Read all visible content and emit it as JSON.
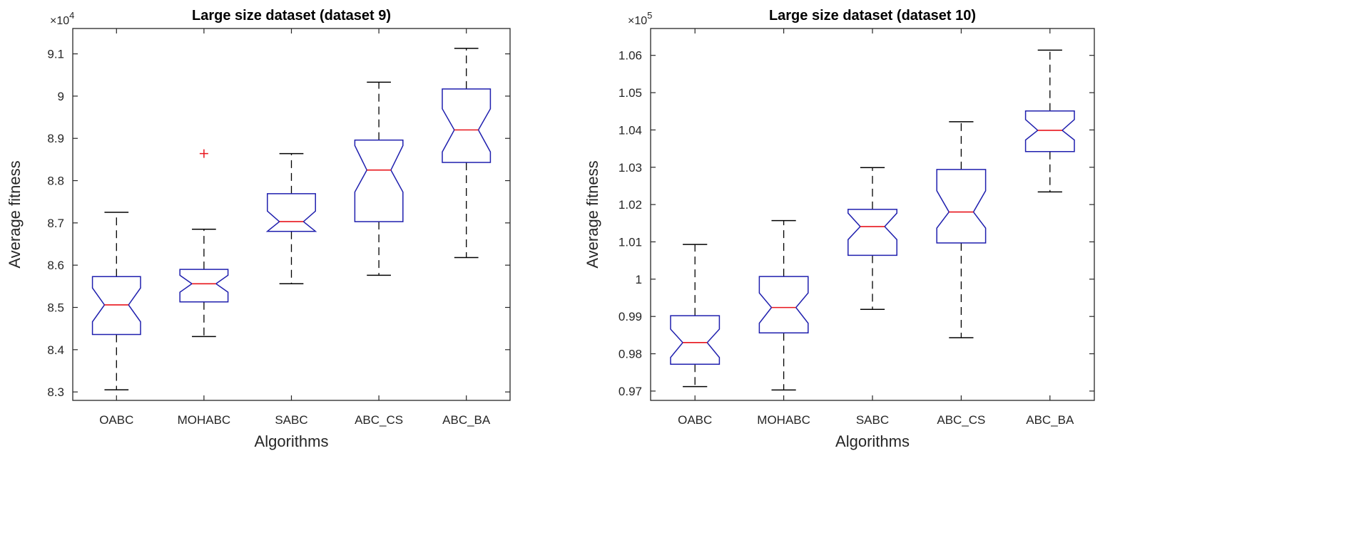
{
  "chart_data": [
    {
      "type": "box",
      "title": "Large size dataset (dataset 9)",
      "xlabel": "Algorithms",
      "ylabel": "Average fitness",
      "exponent_base": "×10",
      "exponent_power": "4",
      "ylim": [
        8.28,
        9.16
      ],
      "yticks": [
        "8.3",
        "8.4",
        "8.5",
        "8.6",
        "8.7",
        "8.8",
        "8.9",
        "9",
        "9.1"
      ],
      "ytick_values": [
        8.3,
        8.4,
        8.5,
        8.6,
        8.7,
        8.8,
        8.9,
        9.0,
        9.1
      ],
      "categories": [
        "OABC",
        "MOHABC",
        "SABC",
        "ABC_CS",
        "ABC_BA"
      ],
      "boxes": [
        {
          "name": "OABC",
          "min": 8.305,
          "q1": 8.436,
          "median": 8.506,
          "q3": 8.573,
          "max": 8.725,
          "notch_low": 8.466,
          "notch_high": 8.546,
          "outliers": []
        },
        {
          "name": "MOHABC",
          "min": 8.431,
          "q1": 8.513,
          "median": 8.556,
          "q3": 8.59,
          "max": 8.685,
          "notch_low": 8.536,
          "notch_high": 8.576,
          "outliers": [
            8.864
          ]
        },
        {
          "name": "SABC",
          "min": 8.556,
          "q1": 8.68,
          "median": 8.703,
          "q3": 8.769,
          "max": 8.864,
          "notch_low": 8.68,
          "notch_high": 8.728,
          "outliers": []
        },
        {
          "name": "ABC_CS",
          "min": 8.576,
          "q1": 8.703,
          "median": 8.825,
          "q3": 8.896,
          "max": 9.033,
          "notch_low": 8.773,
          "notch_high": 8.883,
          "outliers": []
        },
        {
          "name": "ABC_BA",
          "min": 8.618,
          "q1": 8.843,
          "median": 8.92,
          "q3": 9.017,
          "max": 9.113,
          "notch_low": 8.868,
          "notch_high": 8.97,
          "outliers": []
        }
      ]
    },
    {
      "type": "box",
      "title": "Large size dataset (dataset 10)",
      "xlabel": "Algorithms",
      "ylabel": "Average fitness",
      "exponent_base": "×10",
      "exponent_power": "5",
      "ylim": [
        0.9675,
        1.0672
      ],
      "yticks": [
        "0.97",
        "0.98",
        "0.99",
        "1",
        "1.01",
        "1.02",
        "1.03",
        "1.04",
        "1.05",
        "1.06"
      ],
      "ytick_values": [
        0.97,
        0.98,
        0.99,
        1.0,
        1.01,
        1.02,
        1.03,
        1.04,
        1.05,
        1.06
      ],
      "categories": [
        "OABC",
        "MOHABC",
        "SABC",
        "ABC_CS",
        "ABC_BA"
      ],
      "boxes": [
        {
          "name": "OABC",
          "min": 0.9712,
          "q1": 0.9772,
          "median": 0.983,
          "q3": 0.9902,
          "max": 1.0093,
          "notch_low": 0.979,
          "notch_high": 0.9866,
          "outliers": []
        },
        {
          "name": "MOHABC",
          "min": 0.9703,
          "q1": 0.9856,
          "median": 0.9924,
          "q3": 1.0007,
          "max": 1.0157,
          "notch_low": 0.9882,
          "notch_high": 0.9963,
          "outliers": []
        },
        {
          "name": "SABC",
          "min": 0.9919,
          "q1": 1.0064,
          "median": 1.0141,
          "q3": 1.0187,
          "max": 1.0299,
          "notch_low": 1.0106,
          "notch_high": 1.0177,
          "outliers": []
        },
        {
          "name": "ABC_CS",
          "min": 0.9843,
          "q1": 1.0097,
          "median": 1.018,
          "q3": 1.0294,
          "max": 1.0422,
          "notch_low": 1.0137,
          "notch_high": 1.0237,
          "outliers": []
        },
        {
          "name": "ABC_BA",
          "min": 1.0234,
          "q1": 1.0342,
          "median": 1.0399,
          "q3": 1.0451,
          "max": 1.0614,
          "notch_low": 1.0373,
          "notch_high": 1.0428,
          "outliers": []
        }
      ]
    }
  ]
}
